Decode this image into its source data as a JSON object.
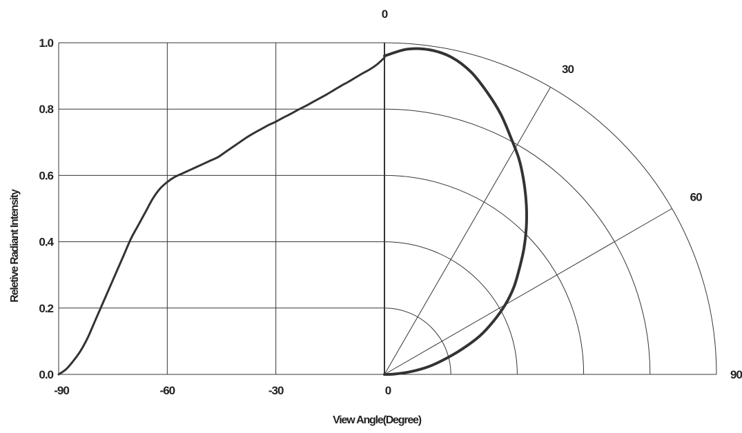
{
  "chart_data": {
    "type": "line",
    "xlabel": "View Angle(Degree)",
    "ylabel": "Reletive Radiant Intensity",
    "x_ticks": [
      "-90",
      "-60",
      "-30",
      "0"
    ],
    "y_ticks": [
      "0.0",
      "0.2",
      "0.4",
      "0.6",
      "0.8",
      "1.0"
    ],
    "xlim": [
      -90,
      0
    ],
    "ylim": [
      0,
      1.0
    ],
    "grid": true,
    "polar_angle_labels": [
      "0",
      "30",
      "60",
      "90"
    ],
    "series": [
      {
        "x": [
          -90,
          -88,
          -86,
          -84,
          -82,
          -80,
          -78,
          -76,
          -74,
          -72,
          -70,
          -68,
          -66,
          -64,
          -62,
          -60,
          -58,
          -56,
          -54,
          -52,
          -50,
          -48,
          -46,
          -44,
          -42,
          -40,
          -38,
          -36,
          -34,
          -32,
          -30,
          -28,
          -26,
          -24,
          -22,
          -20,
          -18,
          -16,
          -14,
          -12,
          -10,
          -8,
          -6,
          -4,
          -2,
          0
        ],
        "y": [
          0.0,
          0.015,
          0.04,
          0.07,
          0.11,
          0.16,
          0.21,
          0.26,
          0.31,
          0.36,
          0.41,
          0.45,
          0.49,
          0.53,
          0.56,
          0.58,
          0.595,
          0.605,
          0.615,
          0.625,
          0.635,
          0.645,
          0.655,
          0.67,
          0.685,
          0.7,
          0.715,
          0.728,
          0.74,
          0.752,
          0.762,
          0.774,
          0.785,
          0.797,
          0.808,
          0.82,
          0.832,
          0.844,
          0.857,
          0.87,
          0.882,
          0.895,
          0.908,
          0.92,
          0.935,
          0.955
        ]
      },
      {
        "angle_deg": [
          0,
          4,
          8,
          12,
          16,
          20,
          24,
          28,
          32,
          36,
          40,
          44,
          48,
          52,
          56,
          60,
          64,
          68,
          72,
          76,
          80,
          84,
          88,
          90
        ],
        "intensity": [
          0.96,
          0.983,
          0.988,
          0.977,
          0.948,
          0.905,
          0.86,
          0.81,
          0.765,
          0.715,
          0.665,
          0.615,
          0.565,
          0.515,
          0.47,
          0.42,
          0.365,
          0.31,
          0.245,
          0.185,
          0.135,
          0.08,
          0.03,
          0.0
        ]
      }
    ]
  }
}
